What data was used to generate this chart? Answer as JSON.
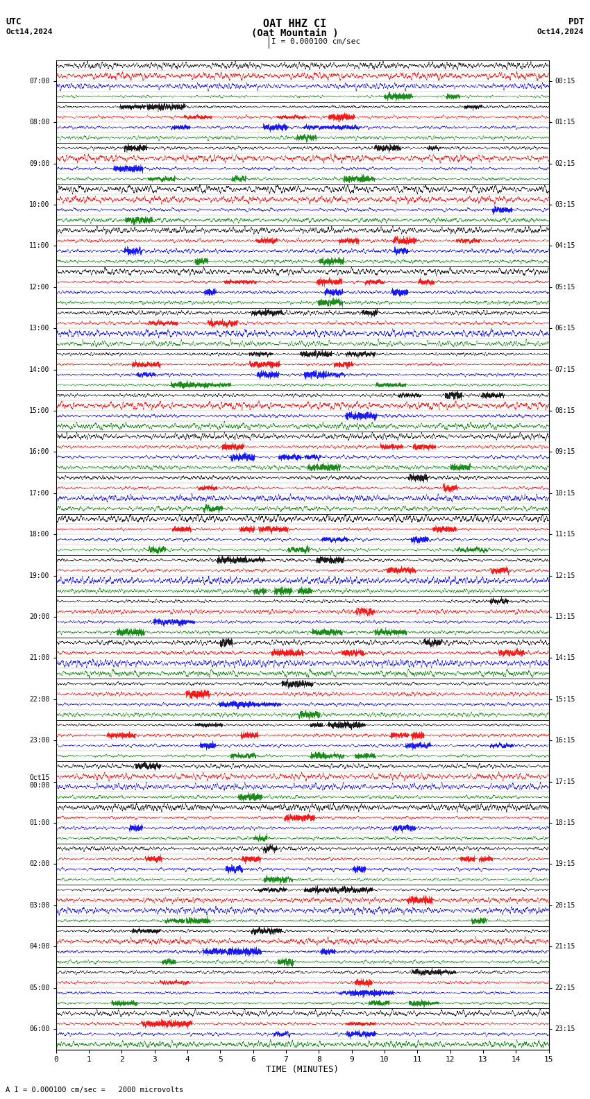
{
  "title_line1": "OAT HHZ CI",
  "title_line2": "(Oat Mountain )",
  "scale_label": "I = 0.000100 cm/sec",
  "utc_label": "UTC",
  "pdt_label": "PDT",
  "date_left": "Oct14,2024",
  "date_right": "Oct14,2024",
  "xlabel": "TIME (MINUTES)",
  "bottom_label": "A I = 0.000100 cm/sec =   2000 microvolts",
  "left_times": [
    "07:00",
    "08:00",
    "09:00",
    "10:00",
    "11:00",
    "12:00",
    "13:00",
    "14:00",
    "15:00",
    "16:00",
    "17:00",
    "18:00",
    "19:00",
    "20:00",
    "21:00",
    "22:00",
    "23:00",
    "Oct15\n00:00",
    "01:00",
    "02:00",
    "03:00",
    "04:00",
    "05:00",
    "06:00"
  ],
  "right_times": [
    "00:15",
    "01:15",
    "02:15",
    "03:15",
    "04:15",
    "05:15",
    "06:15",
    "07:15",
    "08:15",
    "09:15",
    "10:15",
    "11:15",
    "12:15",
    "13:15",
    "14:15",
    "15:15",
    "16:15",
    "17:15",
    "18:15",
    "19:15",
    "20:15",
    "21:15",
    "22:15",
    "23:15"
  ],
  "n_hours": 24,
  "n_subtraces": 4,
  "trace_duration_minutes": 15,
  "trace_colors": [
    "black",
    "red",
    "blue",
    "green"
  ],
  "background_color": "white",
  "xlim": [
    0,
    15
  ],
  "xticks": [
    0,
    1,
    2,
    3,
    4,
    5,
    6,
    7,
    8,
    9,
    10,
    11,
    12,
    13,
    14,
    15
  ],
  "fig_width": 8.5,
  "fig_height": 15.84,
  "dpi": 100,
  "noise_seed": 42
}
